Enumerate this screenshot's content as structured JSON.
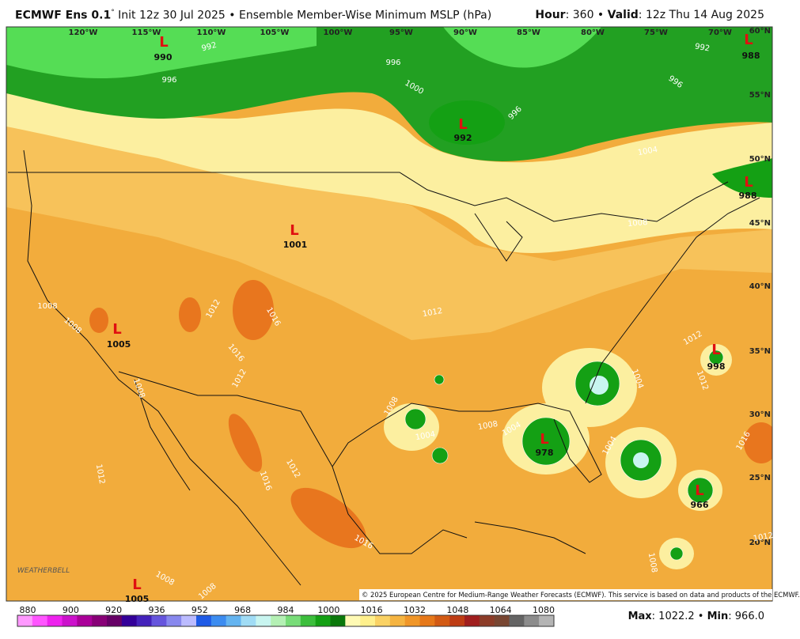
{
  "header": {
    "title": "ECMWF Ens 0.1",
    "degree": "°",
    "description": "Init 12z 30 Jul 2025 • Ensemble Member-Wise Minimum MSLP (hPa)",
    "hour_label": "Hour",
    "hour_value": ": 360 • ",
    "valid_label": "Valid",
    "valid_value": ": 12z Thu 14 Aug 2025"
  },
  "map": {
    "longitude_labels": [
      "120°W",
      "115°W",
      "110°W",
      "105°W",
      "100°W",
      "95°W",
      "90°W",
      "85°W",
      "80°W",
      "75°W",
      "70°W"
    ],
    "latitude_labels": [
      "60°N",
      "55°N",
      "50°N",
      "45°N",
      "40°N",
      "35°N",
      "30°N",
      "25°N",
      "20°N"
    ],
    "lows": [
      {
        "symbol": "L",
        "pressure": "990"
      },
      {
        "symbol": "L",
        "pressure": "992"
      },
      {
        "symbol": "L",
        "pressure": "1001"
      },
      {
        "symbol": "L",
        "pressure": "1005"
      },
      {
        "symbol": "L",
        "pressure": "1005"
      },
      {
        "symbol": "L",
        "pressure": "988"
      },
      {
        "symbol": "L",
        "pressure": "988"
      },
      {
        "symbol": "L",
        "pressure": "998"
      },
      {
        "symbol": "L",
        "pressure": "978"
      },
      {
        "symbol": "L",
        "pressure": "966"
      }
    ],
    "contour_labels": [
      "992",
      "996",
      "996",
      "1000",
      "996",
      "992",
      "996",
      "1004",
      "1008",
      "1008",
      "1008",
      "1012",
      "1016",
      "1016",
      "1012",
      "1012",
      "1008",
      "1008",
      "1004",
      "1008",
      "1004",
      "1004",
      "1004",
      "1012",
      "1012",
      "1016",
      "1012",
      "1016",
      "1012",
      "1016",
      "1008",
      "1008",
      "1008",
      "1012"
    ],
    "watermark": "WEATHERBELL",
    "copyright": "© 2025 European Centre for Medium-Range Weather Forecasts (ECMWF). This service is based on data and products of the ECMWF."
  },
  "colorbar": {
    "labels": [
      "880",
      "900",
      "920",
      "936",
      "952",
      "968",
      "984",
      "1000",
      "1016",
      "1032",
      "1048",
      "1064",
      "1080"
    ],
    "colors": [
      "#ff99ff",
      "#ff55ff",
      "#ee22ee",
      "#cc11cc",
      "#aa0099",
      "#880077",
      "#660066",
      "#330099",
      "#4422bb",
      "#6655dd",
      "#8888ee",
      "#bbbbff",
      "#1e5ae6",
      "#3c8cf0",
      "#64b4f0",
      "#a0dcf5",
      "#c8f5f0",
      "#b4f0b4",
      "#78dc78",
      "#3cbe3c",
      "#14a014",
      "#0a780a",
      "#fffab4",
      "#fff08c",
      "#fad264",
      "#f5b441",
      "#f09628",
      "#e67819",
      "#d25a14",
      "#be3c14",
      "#a01e1e",
      "#8c3c28",
      "#784632",
      "#646464",
      "#8c8c8c",
      "#b4b4b4"
    ]
  },
  "footer": {
    "max_label": "Max",
    "max_value": ": 1022.2 • ",
    "min_label": "Min",
    "min_value": ": 966.0"
  }
}
